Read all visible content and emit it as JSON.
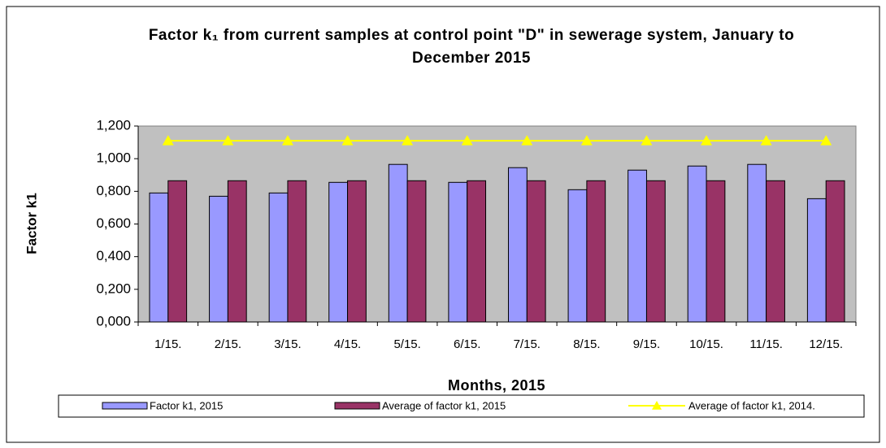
{
  "chart_data": {
    "type": "bar",
    "title": "Factor k₁ from current samples at control point \"D\" in sewerage system, January to December 2015",
    "x_label": "Months, 2015",
    "y_label": "Factor k1",
    "categories": [
      "1/15.",
      "2/15.",
      "3/15.",
      "4/15.",
      "5/15.",
      "6/15.",
      "7/15.",
      "8/15.",
      "9/15.",
      "10/15.",
      "11/15.",
      "12/15."
    ],
    "series": [
      {
        "name": "Factor k1, 2015",
        "type": "bar",
        "color": "#9999ff",
        "values": [
          0.79,
          0.77,
          0.79,
          0.855,
          0.965,
          0.855,
          0.945,
          0.81,
          0.93,
          0.955,
          0.965,
          0.755
        ]
      },
      {
        "name": "Average of factor k1, 2015",
        "type": "bar",
        "color": "#993366",
        "values": [
          0.865,
          0.865,
          0.865,
          0.865,
          0.865,
          0.865,
          0.865,
          0.865,
          0.865,
          0.865,
          0.865,
          0.865
        ]
      },
      {
        "name": "Average of factor k1, 2014.",
        "type": "line",
        "color": "#ffff00",
        "values": [
          1.11,
          1.11,
          1.11,
          1.11,
          1.11,
          1.11,
          1.11,
          1.11,
          1.11,
          1.11,
          1.11,
          1.11
        ]
      }
    ],
    "ylim": [
      0,
      1.2
    ],
    "yticks": [
      {
        "value": 0,
        "label": "0,000"
      },
      {
        "value": 0.2,
        "label": "0,200"
      },
      {
        "value": 0.4,
        "label": "0,400"
      },
      {
        "value": 0.6,
        "label": "0,600"
      },
      {
        "value": 0.8,
        "label": "0,800"
      },
      {
        "value": 1.0,
        "label": "1,000"
      },
      {
        "value": 1.2,
        "label": "1,200"
      }
    ],
    "legend": "bottom",
    "plot_background": "#c0c0c0"
  }
}
